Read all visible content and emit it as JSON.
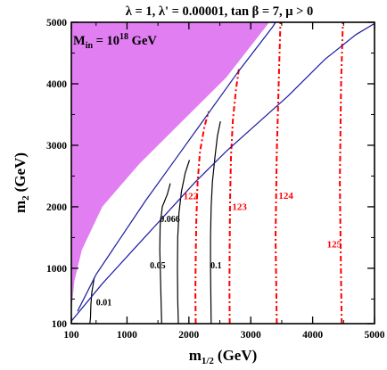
{
  "header": {
    "title": "λ = 1, λ' = 0.00001, tan β = 7, μ > 0"
  },
  "chart_data": {
    "type": "line",
    "title": "λ = 1, λ' = 0.00001, tan β = 7, μ > 0",
    "xlabel": "m",
    "xlabel_sub": "1/2",
    "xlabel_unit": "(GeV)",
    "ylabel": "m",
    "ylabel_sub": "2",
    "ylabel_unit": "(GeV)",
    "xlim": [
      100,
      5000
    ],
    "ylim": [
      100,
      5000
    ],
    "xticks": [
      100,
      1000,
      2000,
      3000,
      4000,
      5000
    ],
    "yticks": [
      100,
      1000,
      2000,
      3000,
      4000,
      5000
    ],
    "inset_label": {
      "main": "M",
      "sub": "in",
      "eq": " = 10",
      "sup": "18",
      "unit": " GeV"
    },
    "excluded_region": {
      "color": "#e17ef2",
      "boundary": [
        [
          100,
          100
        ],
        [
          110,
          400
        ],
        [
          150,
          800
        ],
        [
          270,
          1300
        ],
        [
          600,
          2000
        ],
        [
          1200,
          2700
        ],
        [
          1900,
          3400
        ],
        [
          2600,
          4100
        ],
        [
          3300,
          5000
        ],
        [
          100,
          5000
        ]
      ]
    },
    "series": [
      {
        "label": "0.01",
        "color": "#000000",
        "dash": "",
        "label_pos": [
          500,
          400
        ],
        "points": [
          [
            400,
            100
          ],
          [
            410,
            200
          ],
          [
            415,
            400
          ],
          [
            430,
            600
          ],
          [
            455,
            750
          ],
          [
            470,
            850
          ]
        ]
      },
      {
        "label": "0.05",
        "color": "#000000",
        "dash": "",
        "label_pos": [
          1370,
          1000
        ],
        "points": [
          [
            1560,
            100
          ],
          [
            1550,
            500
          ],
          [
            1540,
            900
          ],
          [
            1530,
            1300
          ],
          [
            1535,
            1700
          ],
          [
            1570,
            2000
          ],
          [
            1650,
            2200
          ],
          [
            1700,
            2380
          ]
        ]
      },
      {
        "label": "0.066",
        "color": "#000000",
        "dash": "",
        "label_pos": [
          1530,
          1750
        ],
        "points": [
          [
            1830,
            100
          ],
          [
            1820,
            500
          ],
          [
            1815,
            1000
          ],
          [
            1820,
            1500
          ],
          [
            1840,
            1900
          ],
          [
            1880,
            2250
          ],
          [
            1940,
            2550
          ],
          [
            2010,
            2760
          ]
        ]
      },
      {
        "label": "0.1",
        "color": "#000000",
        "dash": "",
        "label_pos": [
          2350,
          1000
        ],
        "points": [
          [
            2360,
            100
          ],
          [
            2355,
            500
          ],
          [
            2350,
            1000
          ],
          [
            2350,
            1500
          ],
          [
            2360,
            2000
          ],
          [
            2380,
            2400
          ],
          [
            2420,
            2800
          ],
          [
            2460,
            3150
          ],
          [
            2510,
            3390
          ]
        ]
      },
      {
        "label": "122",
        "color": "#ff0000",
        "dash": "6,3,2,3",
        "label_pos": [
          1910,
          2120
        ],
        "points": [
          [
            2110,
            100
          ],
          [
            2105,
            600
          ],
          [
            2110,
            1200
          ],
          [
            2120,
            1800
          ],
          [
            2140,
            2400
          ],
          [
            2180,
            2900
          ],
          [
            2250,
            3300
          ],
          [
            2320,
            3550
          ]
        ]
      },
      {
        "label": "123",
        "color": "#ff0000",
        "dash": "6,3,2,3",
        "label_pos": [
          2700,
          1950
        ],
        "points": [
          [
            2660,
            100
          ],
          [
            2655,
            700
          ],
          [
            2660,
            1400
          ],
          [
            2665,
            2100
          ],
          [
            2680,
            2800
          ],
          [
            2710,
            3400
          ],
          [
            2760,
            3900
          ],
          [
            2810,
            4250
          ]
        ]
      },
      {
        "label": "124",
        "color": "#ff0000",
        "dash": "6,3,2,3",
        "label_pos": [
          3450,
          2130
        ],
        "points": [
          [
            3420,
            100
          ],
          [
            3410,
            800
          ],
          [
            3400,
            1500
          ],
          [
            3410,
            2200
          ],
          [
            3420,
            2900
          ],
          [
            3440,
            3600
          ],
          [
            3460,
            4300
          ],
          [
            3480,
            5000
          ]
        ]
      },
      {
        "label": "125",
        "color": "#ff0000",
        "dash": "6,3,2,3",
        "label_pos": [
          4230,
          1340
        ],
        "points": [
          [
            4470,
            100
          ],
          [
            4460,
            800
          ],
          [
            4450,
            1600
          ],
          [
            4440,
            2400
          ],
          [
            4450,
            3200
          ],
          [
            4460,
            4000
          ],
          [
            4480,
            4700
          ],
          [
            4490,
            5000
          ]
        ]
      },
      {
        "label": "",
        "color": "#1a1aa0",
        "dash": "",
        "label_pos": null,
        "points": [
          [
            100,
            140
          ],
          [
            600,
            750
          ],
          [
            1100,
            1300
          ],
          [
            1600,
            1850
          ],
          [
            2100,
            2400
          ],
          [
            2600,
            2900
          ],
          [
            3100,
            3350
          ],
          [
            3600,
            3800
          ],
          [
            4200,
            4400
          ],
          [
            4700,
            4800
          ],
          [
            5000,
            4980
          ]
        ]
      },
      {
        "label": "",
        "color": "#1a1aa0",
        "dash": "",
        "label_pos": null,
        "points": [
          [
            200,
            300
          ],
          [
            500,
            900
          ],
          [
            900,
            1500
          ],
          [
            1300,
            2100
          ],
          [
            1800,
            2800
          ],
          [
            2300,
            3500
          ],
          [
            2800,
            4200
          ],
          [
            3350,
            4920
          ],
          [
            3400,
            5000
          ]
        ]
      }
    ]
  }
}
